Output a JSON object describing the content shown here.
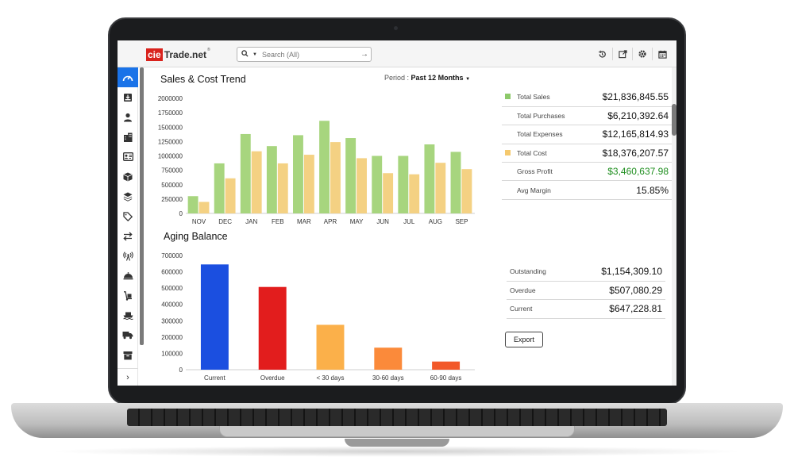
{
  "brand": {
    "logo_prefix": "cie",
    "logo_name": "Trade.net",
    "logo_mark": "®"
  },
  "search": {
    "placeholder": "Search (All)"
  },
  "header_icons": [
    "history-icon",
    "external-link-icon",
    "gear-icon",
    "calendar-icon"
  ],
  "sidebar_icons": [
    "dashboard-gauge-icon",
    "inbox-download-icon",
    "user-icon",
    "building-icon",
    "contact-card-icon",
    "box-icon",
    "layers-icon",
    "tag-icon",
    "transfer-arrows-icon",
    "antenna-icon",
    "dish-icon",
    "hand-truck-icon",
    "ship-icon",
    "truck-icon",
    "archive-icon"
  ],
  "sales": {
    "title": "Sales & Cost Trend",
    "period_label": "Period :",
    "period_value": "Past 12 Months",
    "stats": [
      {
        "label": "Total Sales",
        "value": "$21,836,845.55",
        "swatch": "#8dc96a"
      },
      {
        "label": "Total Purchases",
        "value": "$6,210,392.64",
        "swatch": ""
      },
      {
        "label": "Total Expenses",
        "value": "$12,165,814.93",
        "swatch": ""
      },
      {
        "label": "Total Cost",
        "value": "$18,376,207.57",
        "swatch": "#f5c96e"
      },
      {
        "label": "Gross Profit",
        "value": "$3,460,637.98",
        "swatch": "",
        "value_color": "#1e8e1e"
      },
      {
        "label": "Avg Margin",
        "value": "15.85%",
        "swatch": ""
      }
    ]
  },
  "aging": {
    "title": "Aging Balance",
    "stats": [
      {
        "label": "Outstanding",
        "value": "$1,154,309.10"
      },
      {
        "label": "Overdue",
        "value": "$507,080.29"
      },
      {
        "label": "Current",
        "value": "$647,228.81"
      }
    ],
    "export_label": "Export"
  },
  "colors": {
    "sales": "#a7d57e",
    "cost": "#f4d183",
    "accent": "#1a73e8"
  },
  "chart_data": [
    {
      "type": "bar",
      "categories": [
        "NOV",
        "DEC",
        "JAN",
        "FEB",
        "MAR",
        "APR",
        "MAY",
        "JUN",
        "JUL",
        "AUG",
        "SEP"
      ],
      "series": [
        {
          "color": "#a7d57e",
          "values": [
            300000,
            870000,
            1380000,
            1170000,
            1360000,
            1610000,
            1310000,
            1000000,
            1000000,
            1200000,
            1070000
          ]
        },
        {
          "color": "#f4d183",
          "values": [
            200000,
            610000,
            1080000,
            870000,
            1020000,
            1240000,
            960000,
            700000,
            680000,
            880000,
            770000
          ]
        }
      ],
      "yticks": [
        0,
        250000,
        500000,
        750000,
        1000000,
        1250000,
        1500000,
        1750000,
        2000000
      ],
      "ylim": [
        0,
        2000000
      ],
      "grid": false
    },
    {
      "type": "bar",
      "categories": [
        "Current",
        "Overdue",
        "< 30 days",
        "30-60 days",
        "60-90 days"
      ],
      "values": [
        645000,
        507000,
        275000,
        135000,
        50000
      ],
      "colors": [
        "#1b4fe0",
        "#e21d1d",
        "#fbb04a",
        "#fb8a3a",
        "#f2592a"
      ],
      "yticks": [
        0,
        100000,
        200000,
        300000,
        400000,
        500000,
        600000,
        700000
      ],
      "ylim": [
        0,
        700000
      ],
      "grid": false
    }
  ]
}
